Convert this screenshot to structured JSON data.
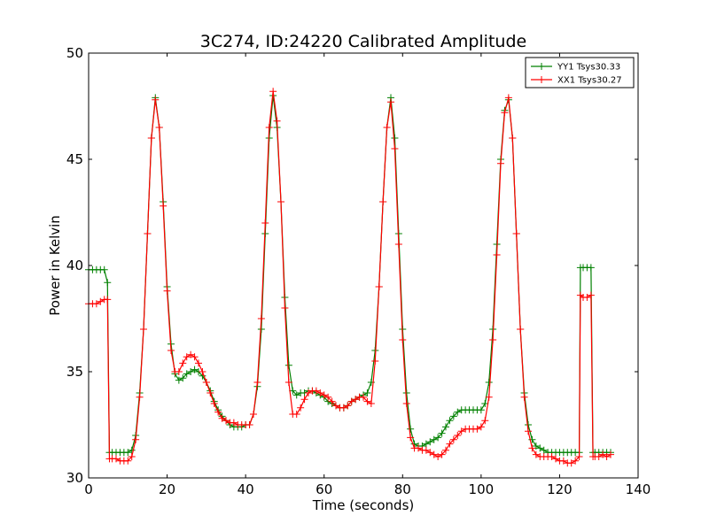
{
  "chart_data": {
    "type": "line",
    "title": "3C274, ID:24220 Calibrated Amplitude",
    "xlabel": "Time (seconds)",
    "ylabel": "Power in Kelvin",
    "xlim": [
      0,
      140
    ],
    "ylim": [
      30,
      50
    ],
    "xticks": [
      0,
      20,
      40,
      60,
      80,
      100,
      120,
      140
    ],
    "yticks": [
      30,
      35,
      40,
      45,
      50
    ],
    "grid": false,
    "legend": "top-right",
    "colors": {
      "yy": "#008000",
      "xx": "#ff0000"
    },
    "series": [
      {
        "name": "YY1 Tsys30.33",
        "color": "#008000",
        "marker": "+",
        "points": [
          [
            0,
            39.8
          ],
          [
            1,
            39.8
          ],
          [
            2,
            39.8
          ],
          [
            3,
            39.8
          ],
          [
            4,
            39.8
          ],
          [
            4.8,
            39.2
          ],
          [
            5.3,
            31.2
          ],
          [
            6,
            31.2
          ],
          [
            7,
            31.2
          ],
          [
            8,
            31.2
          ],
          [
            9,
            31.2
          ],
          [
            10,
            31.2
          ],
          [
            11,
            31.3
          ],
          [
            12,
            32
          ],
          [
            13,
            34
          ],
          [
            14,
            37
          ],
          [
            15,
            41.5
          ],
          [
            16,
            46
          ],
          [
            17,
            47.9
          ],
          [
            18,
            46.5
          ],
          [
            19,
            43
          ],
          [
            20,
            39
          ],
          [
            21,
            36.3
          ],
          [
            22,
            34.9
          ],
          [
            23,
            34.6
          ],
          [
            24,
            34.7
          ],
          [
            25,
            34.9
          ],
          [
            26,
            35
          ],
          [
            27,
            35.1
          ],
          [
            28,
            35
          ],
          [
            29,
            34.8
          ],
          [
            30,
            34.5
          ],
          [
            31,
            34.1
          ],
          [
            32,
            33.6
          ],
          [
            33,
            33.2
          ],
          [
            34,
            32.9
          ],
          [
            35,
            32.7
          ],
          [
            36,
            32.5
          ],
          [
            37,
            32.4
          ],
          [
            38,
            32.4
          ],
          [
            39,
            32.4
          ],
          [
            40,
            32.5
          ],
          [
            41,
            32.5
          ],
          [
            42,
            33
          ],
          [
            43,
            34.3
          ],
          [
            44,
            37
          ],
          [
            45,
            41.5
          ],
          [
            46,
            46
          ],
          [
            47,
            48
          ],
          [
            48,
            46.5
          ],
          [
            49,
            43
          ],
          [
            50,
            38.5
          ],
          [
            51,
            35.3
          ],
          [
            52,
            34.1
          ],
          [
            53,
            33.9
          ],
          [
            54,
            34
          ],
          [
            55,
            34
          ],
          [
            56,
            34.1
          ],
          [
            57,
            34.1
          ],
          [
            58,
            34
          ],
          [
            59,
            33.9
          ],
          [
            60,
            33.8
          ],
          [
            61,
            33.6
          ],
          [
            62,
            33.5
          ],
          [
            63,
            33.4
          ],
          [
            64,
            33.3
          ],
          [
            65,
            33.3
          ],
          [
            66,
            33.4
          ],
          [
            67,
            33.6
          ],
          [
            68,
            33.7
          ],
          [
            69,
            33.8
          ],
          [
            70,
            33.9
          ],
          [
            71,
            34
          ],
          [
            72,
            34.5
          ],
          [
            73,
            36
          ],
          [
            74,
            39
          ],
          [
            75,
            43
          ],
          [
            76,
            46.5
          ],
          [
            77,
            47.9
          ],
          [
            78,
            46
          ],
          [
            79,
            41.5
          ],
          [
            80,
            37
          ],
          [
            81,
            34
          ],
          [
            82,
            32.3
          ],
          [
            83,
            31.6
          ],
          [
            84,
            31.5
          ],
          [
            85,
            31.5
          ],
          [
            86,
            31.6
          ],
          [
            87,
            31.7
          ],
          [
            88,
            31.8
          ],
          [
            89,
            31.9
          ],
          [
            90,
            32.1
          ],
          [
            91,
            32.4
          ],
          [
            92,
            32.7
          ],
          [
            93,
            32.9
          ],
          [
            94,
            33.1
          ],
          [
            95,
            33.2
          ],
          [
            96,
            33.2
          ],
          [
            97,
            33.2
          ],
          [
            98,
            33.2
          ],
          [
            99,
            33.2
          ],
          [
            100,
            33.2
          ],
          [
            101,
            33.5
          ],
          [
            102,
            34.5
          ],
          [
            103,
            37
          ],
          [
            104,
            41
          ],
          [
            105,
            45
          ],
          [
            106,
            47.3
          ],
          [
            107,
            47.8
          ],
          [
            108,
            46
          ],
          [
            109,
            41.5
          ],
          [
            110,
            37
          ],
          [
            111,
            34
          ],
          [
            112,
            32.5
          ],
          [
            113,
            31.8
          ],
          [
            114,
            31.5
          ],
          [
            115,
            31.4
          ],
          [
            116,
            31.3
          ],
          [
            117,
            31.2
          ],
          [
            118,
            31.2
          ],
          [
            119,
            31.2
          ],
          [
            120,
            31.2
          ],
          [
            121,
            31.2
          ],
          [
            122,
            31.2
          ],
          [
            123,
            31.2
          ],
          [
            124,
            31.2
          ],
          [
            125,
            31.2
          ],
          [
            125.3,
            39.9
          ],
          [
            126,
            39.9
          ],
          [
            127,
            39.9
          ],
          [
            128,
            39.9
          ],
          [
            128.5,
            31.2
          ],
          [
            129,
            31.2
          ],
          [
            130,
            31.2
          ],
          [
            131,
            31.2
          ],
          [
            132,
            31.2
          ],
          [
            133,
            31.2
          ]
        ]
      },
      {
        "name": "XX1 Tsys30.27",
        "color": "#ff0000",
        "marker": "+",
        "points": [
          [
            0,
            38.2
          ],
          [
            1,
            38.2
          ],
          [
            2,
            38.2
          ],
          [
            3,
            38.3
          ],
          [
            4,
            38.4
          ],
          [
            4.8,
            38.4
          ],
          [
            5.3,
            30.9
          ],
          [
            6,
            30.9
          ],
          [
            7,
            30.9
          ],
          [
            8,
            30.8
          ],
          [
            9,
            30.8
          ],
          [
            10,
            30.8
          ],
          [
            11,
            31
          ],
          [
            12,
            31.8
          ],
          [
            13,
            33.8
          ],
          [
            14,
            37
          ],
          [
            15,
            41.5
          ],
          [
            16,
            46
          ],
          [
            17,
            47.8
          ],
          [
            18,
            46.5
          ],
          [
            19,
            42.8
          ],
          [
            20,
            38.8
          ],
          [
            21,
            36
          ],
          [
            22,
            35
          ],
          [
            23,
            35
          ],
          [
            24,
            35.4
          ],
          [
            25,
            35.7
          ],
          [
            26,
            35.8
          ],
          [
            27,
            35.7
          ],
          [
            28,
            35.4
          ],
          [
            29,
            35
          ],
          [
            30,
            34.5
          ],
          [
            31,
            34
          ],
          [
            32,
            33.5
          ],
          [
            33,
            33.1
          ],
          [
            34,
            32.8
          ],
          [
            35,
            32.7
          ],
          [
            36,
            32.6
          ],
          [
            37,
            32.6
          ],
          [
            38,
            32.5
          ],
          [
            39,
            32.5
          ],
          [
            40,
            32.5
          ],
          [
            41,
            32.5
          ],
          [
            42,
            33
          ],
          [
            43,
            34.5
          ],
          [
            44,
            37.5
          ],
          [
            45,
            42
          ],
          [
            46,
            46.5
          ],
          [
            47,
            48.2
          ],
          [
            48,
            46.8
          ],
          [
            49,
            43
          ],
          [
            50,
            38
          ],
          [
            51,
            34.5
          ],
          [
            52,
            33
          ],
          [
            53,
            33
          ],
          [
            54,
            33.3
          ],
          [
            55,
            33.7
          ],
          [
            56,
            34
          ],
          [
            57,
            34.1
          ],
          [
            58,
            34.1
          ],
          [
            59,
            34
          ],
          [
            60,
            33.9
          ],
          [
            61,
            33.8
          ],
          [
            62,
            33.6
          ],
          [
            63,
            33.4
          ],
          [
            64,
            33.3
          ],
          [
            65,
            33.3
          ],
          [
            66,
            33.4
          ],
          [
            67,
            33.6
          ],
          [
            68,
            33.7
          ],
          [
            69,
            33.8
          ],
          [
            70,
            33.8
          ],
          [
            71,
            33.6
          ],
          [
            72,
            33.5
          ],
          [
            73,
            35.5
          ],
          [
            74,
            39
          ],
          [
            75,
            43
          ],
          [
            76,
            46.5
          ],
          [
            77,
            47.7
          ],
          [
            78,
            45.5
          ],
          [
            79,
            41
          ],
          [
            80,
            36.5
          ],
          [
            81,
            33.5
          ],
          [
            82,
            31.9
          ],
          [
            83,
            31.4
          ],
          [
            84,
            31.4
          ],
          [
            85,
            31.3
          ],
          [
            86,
            31.3
          ],
          [
            87,
            31.2
          ],
          [
            88,
            31.1
          ],
          [
            89,
            31
          ],
          [
            90,
            31.1
          ],
          [
            91,
            31.3
          ],
          [
            92,
            31.6
          ],
          [
            93,
            31.8
          ],
          [
            94,
            32
          ],
          [
            95,
            32.2
          ],
          [
            96,
            32.3
          ],
          [
            97,
            32.3
          ],
          [
            98,
            32.3
          ],
          [
            99,
            32.3
          ],
          [
            100,
            32.4
          ],
          [
            101,
            32.7
          ],
          [
            102,
            33.8
          ],
          [
            103,
            36.5
          ],
          [
            104,
            40.5
          ],
          [
            105,
            44.8
          ],
          [
            106,
            47.2
          ],
          [
            107,
            47.9
          ],
          [
            108,
            46
          ],
          [
            109,
            41.5
          ],
          [
            110,
            37
          ],
          [
            111,
            33.8
          ],
          [
            112,
            32.2
          ],
          [
            113,
            31.4
          ],
          [
            114,
            31.1
          ],
          [
            115,
            31
          ],
          [
            116,
            31
          ],
          [
            117,
            31
          ],
          [
            118,
            31
          ],
          [
            119,
            30.9
          ],
          [
            120,
            30.8
          ],
          [
            121,
            30.8
          ],
          [
            122,
            30.7
          ],
          [
            123,
            30.7
          ],
          [
            124,
            30.8
          ],
          [
            125,
            31
          ],
          [
            125.3,
            38.6
          ],
          [
            126,
            38.5
          ],
          [
            127,
            38.5
          ],
          [
            128,
            38.6
          ],
          [
            128.5,
            31
          ],
          [
            129,
            31
          ],
          [
            130,
            31
          ],
          [
            131,
            31.1
          ],
          [
            132,
            31
          ],
          [
            133,
            31.1
          ]
        ]
      }
    ]
  }
}
